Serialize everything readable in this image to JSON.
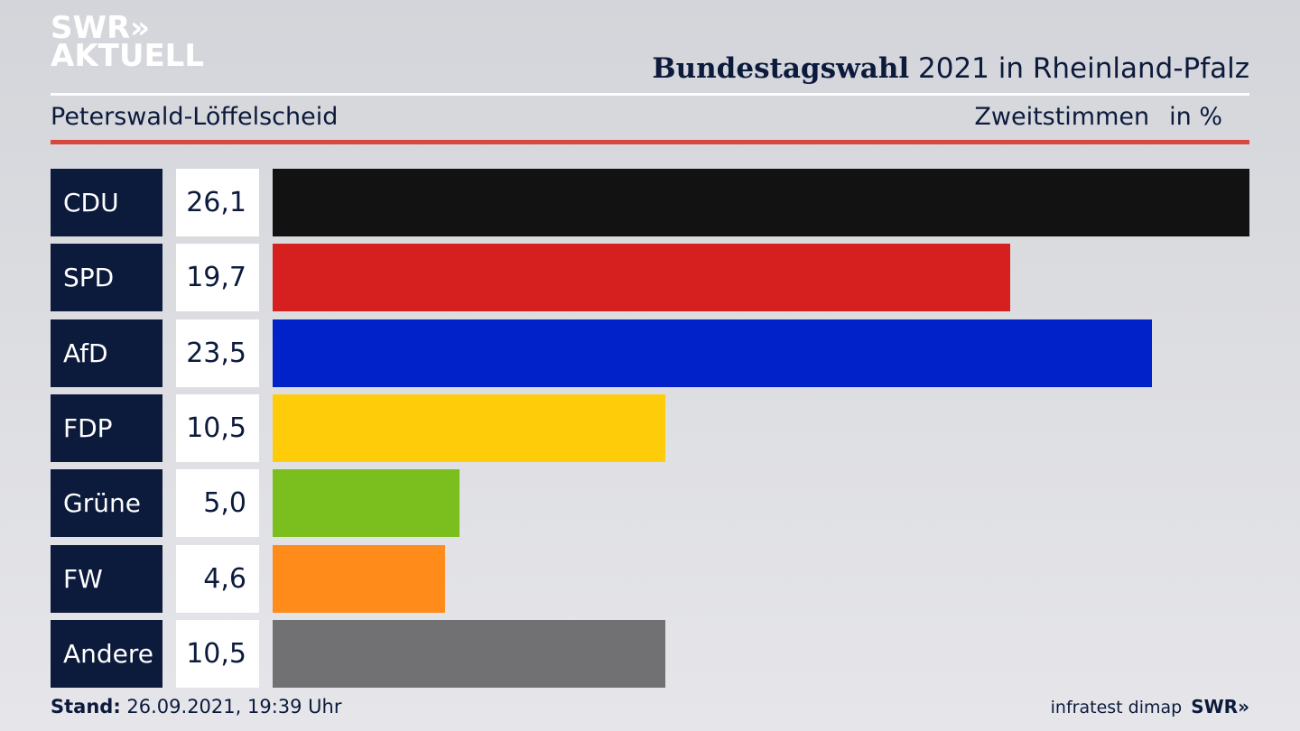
{
  "logo": {
    "line1": "SWR»",
    "line2": "AKTUELL"
  },
  "header": {
    "title_bold": "Bundestagswahl",
    "title_rest": " 2021 in Rheinland-Pfalz",
    "location": "Peterswald-Löffelscheid",
    "vote_type": "Zweitstimmen",
    "unit": "in %"
  },
  "chart_data": {
    "type": "bar",
    "orientation": "horizontal",
    "title": "Bundestagswahl 2021 in Rheinland-Pfalz",
    "subtitle": "Peterswald-Löffelscheid",
    "categories": [
      "CDU",
      "SPD",
      "AfD",
      "FDP",
      "Grüne",
      "FW",
      "Andere"
    ],
    "values": [
      26.1,
      19.7,
      23.5,
      10.5,
      5.0,
      4.6,
      10.5
    ],
    "value_labels": [
      "26,1",
      "19,7",
      "23,5",
      "10,5",
      "5,0",
      "4,6",
      "10,5"
    ],
    "colors": [
      "#121212",
      "#d62020",
      "#0022c8",
      "#ffcc0a",
      "#7abf1e",
      "#ff8c1a",
      "#717174"
    ],
    "unit": "%",
    "xlim": [
      0,
      26.1
    ]
  },
  "footer": {
    "stand_label": "Stand:",
    "stand_value": " 26.09.2021, 19:39 Uhr",
    "source": "infratest dimap",
    "brand": "SWR»"
  }
}
